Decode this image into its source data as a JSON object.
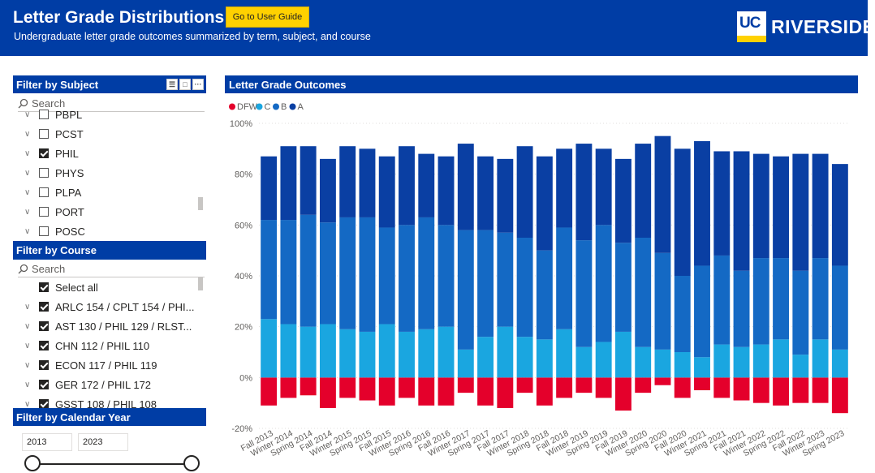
{
  "header": {
    "title": "Letter Grade Distributions",
    "subtitle": "Undergraduate letter grade outcomes summarized by term, subject, and course",
    "guide_button": "Go to User Guide",
    "logo_uc": "UC",
    "logo_text": "RIVERSIDE"
  },
  "subject_filter": {
    "title": "Filter by Subject",
    "search_placeholder": "Search",
    "items": [
      {
        "label": "PBPL",
        "checked": false
      },
      {
        "label": "PCST",
        "checked": false
      },
      {
        "label": "PHIL",
        "checked": true
      },
      {
        "label": "PHYS",
        "checked": false
      },
      {
        "label": "PLPA",
        "checked": false
      },
      {
        "label": "PORT",
        "checked": false
      },
      {
        "label": "POSC",
        "checked": false
      }
    ]
  },
  "course_filter": {
    "title": "Filter by Course",
    "search_placeholder": "Search",
    "select_all": "Select all",
    "items": [
      {
        "label": "ARLC 154 / CPLT 154 / PHI...",
        "checked": true
      },
      {
        "label": "AST 130 / PHIL 129 / RLST...",
        "checked": true
      },
      {
        "label": "CHN 112 / PHIL 110",
        "checked": true
      },
      {
        "label": "ECON 117 / PHIL 119",
        "checked": true
      },
      {
        "label": "GER 172 / PHIL 172",
        "checked": true
      },
      {
        "label": "GSST 108 / PHIL 108",
        "checked": true
      }
    ]
  },
  "year_filter": {
    "title": "Filter by Calendar Year",
    "start": "2013",
    "end": "2023"
  },
  "chart_data": {
    "type": "bar",
    "title": "Letter Grade Outcomes",
    "stacked": true,
    "legend_position": "top-left",
    "grid": true,
    "ylim": [
      -20,
      100
    ],
    "y_ticks": [
      "100%",
      "80%",
      "60%",
      "40%",
      "20%",
      "0%",
      "-20%"
    ],
    "categories": [
      "Fall 2013",
      "Winter 2014",
      "Spring 2014",
      "Fall 2014",
      "Winter 2015",
      "Spring 2015",
      "Fall 2015",
      "Winter 2016",
      "Spring 2016",
      "Fall 2016",
      "Winter 2017",
      "Spring 2017",
      "Fall 2017",
      "Winter 2018",
      "Spring 2018",
      "Fall 2018",
      "Winter 2019",
      "Spring 2019",
      "Fall 2019",
      "Winter 2020",
      "Spring 2020",
      "Fall 2020",
      "Winter 2021",
      "Spring 2021",
      "Fall 2021",
      "Winter 2022",
      "Spring 2022",
      "Fall 2022",
      "Winter 2023",
      "Spring 2023"
    ],
    "x_tick_labels": [
      "Fall 2013",
      "Winter 2014",
      "Spring 2014",
      "Fall 2014",
      "Winter 2015",
      "Spring 2015",
      "Fall 2015",
      "Winter 2016",
      "Spring 2016",
      "Fall 2016",
      "Winter 2017",
      "Spring 2017",
      "Fall 2017",
      "Winter 2018",
      "Spring 2018",
      "Fall 2018",
      "Winter 2019",
      "Spring 2019",
      "Fall 2019",
      "Winter 2020",
      "Spring 2020",
      "Fall 2020",
      "Winter 2021",
      "Spring 2021",
      "Fall 2021",
      "Winter 2022",
      "Spring 2022",
      "Fall 2022",
      "Winter 2023",
      "Spring 2023"
    ],
    "series": [
      {
        "name": "DFW",
        "color": "#E4002B",
        "values": [
          -11,
          -8,
          -7,
          -12,
          -8,
          -9,
          -11,
          -8,
          -11,
          -11,
          -6,
          -11,
          -12,
          -6,
          -11,
          -8,
          -6,
          -8,
          -13,
          -6,
          -3,
          -8,
          -5,
          -8,
          -9,
          -10,
          -11,
          -10,
          -10,
          -14
        ]
      },
      {
        "name": "C",
        "color": "#1AA6E0",
        "values": [
          23,
          21,
          20,
          21,
          19,
          18,
          21,
          18,
          19,
          20,
          11,
          16,
          20,
          16,
          15,
          19,
          12,
          14,
          18,
          12,
          11,
          10,
          8,
          13,
          12,
          13,
          15,
          9,
          15,
          11
        ]
      },
      {
        "name": "B",
        "color": "#1469C4",
        "values": [
          39,
          41,
          44,
          40,
          44,
          45,
          38,
          42,
          44,
          40,
          47,
          42,
          37,
          39,
          35,
          40,
          42,
          46,
          35,
          43,
          38,
          30,
          36,
          35,
          30,
          34,
          32,
          33,
          32,
          33
        ]
      },
      {
        "name": "A",
        "color": "#0A3FA3",
        "values": [
          25,
          29,
          27,
          25,
          28,
          27,
          28,
          31,
          25,
          27,
          34,
          29,
          29,
          36,
          37,
          31,
          38,
          30,
          33,
          37,
          46,
          50,
          49,
          41,
          47,
          41,
          40,
          46,
          41,
          40
        ]
      }
    ]
  }
}
